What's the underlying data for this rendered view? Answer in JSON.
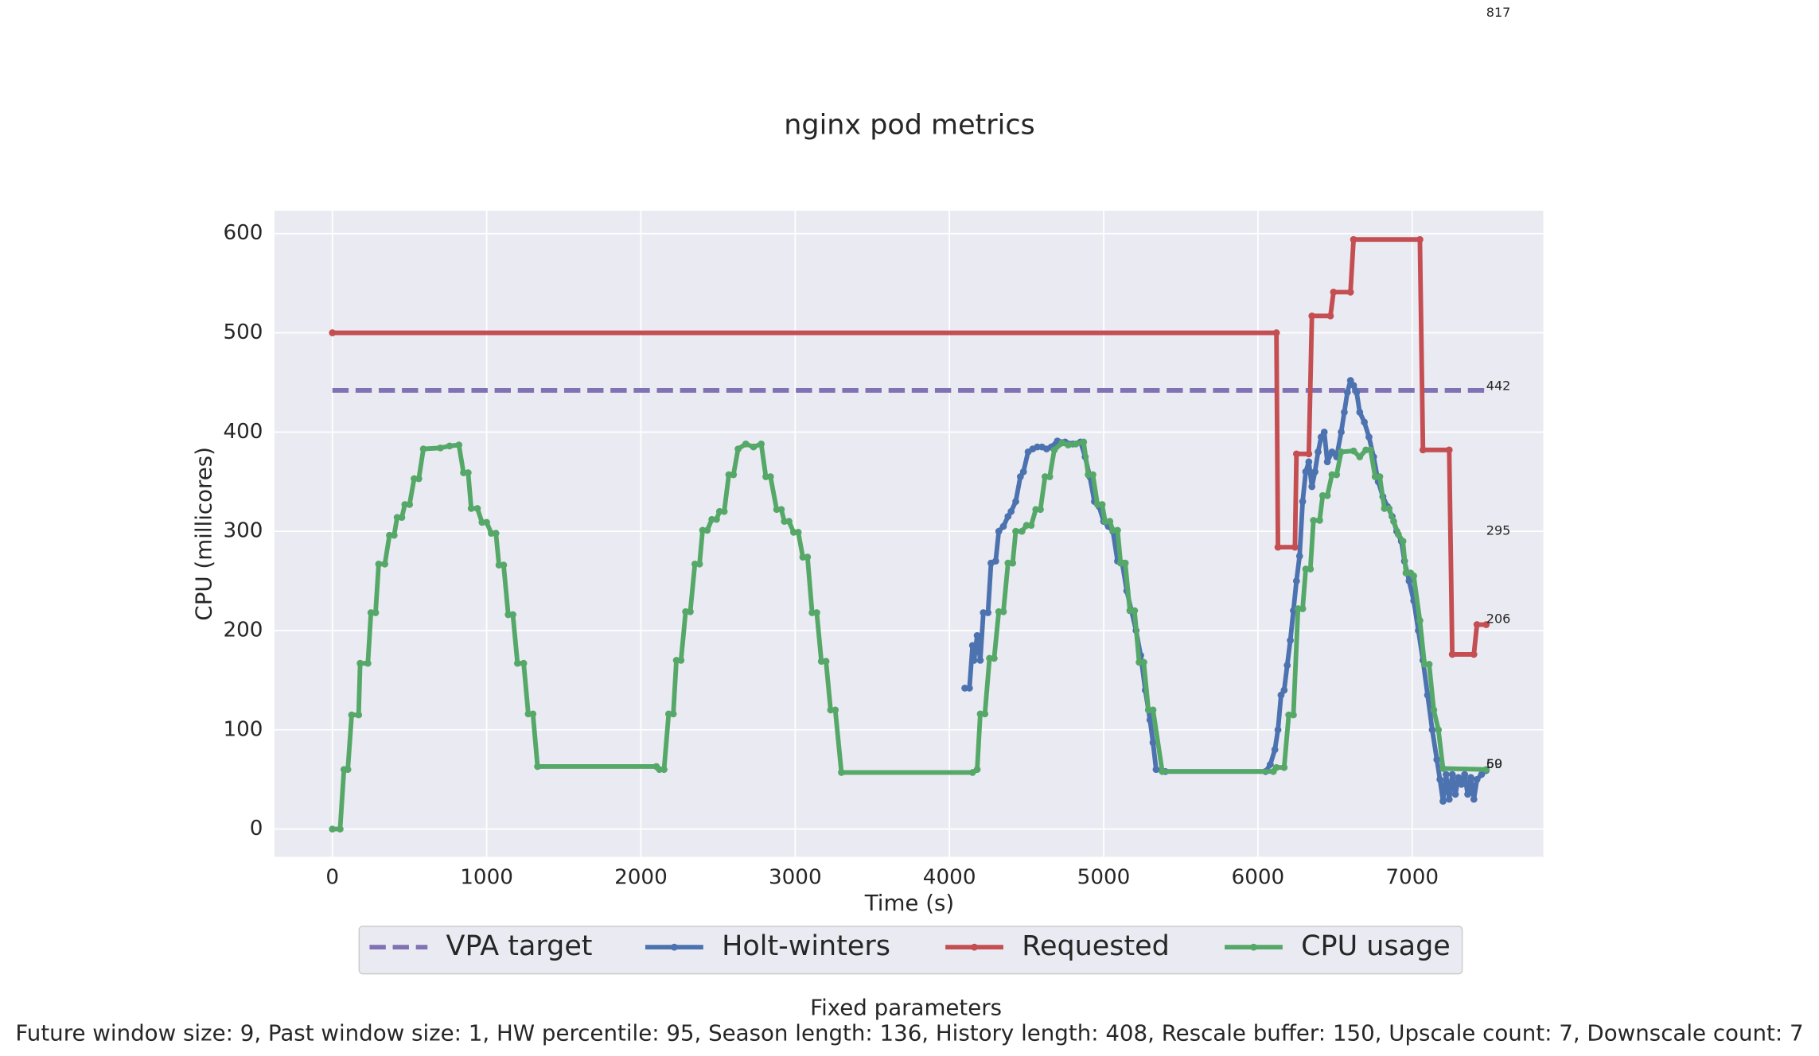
{
  "chart_data": {
    "type": "line",
    "title": "nginx pod metrics",
    "xlabel": "Time (s)",
    "ylabel": "CPU (millicores)",
    "xlim": [
      -375,
      7850
    ],
    "ylim": [
      -28,
      623
    ],
    "xticks": [
      0,
      1000,
      2000,
      3000,
      4000,
      5000,
      6000,
      7000
    ],
    "yticks": [
      0,
      100,
      200,
      300,
      400,
      500,
      600
    ],
    "grid": true,
    "legend": "lower center",
    "series": [
      {
        "name": "VPA target",
        "color": "#8172b3",
        "linestyle": "dashed",
        "markers": false,
        "x": [
          0,
          7480
        ],
        "values": [
          442,
          442
        ]
      },
      {
        "name": "Holt-winters",
        "color": "#4c72b0",
        "linestyle": "solid",
        "markers": true,
        "x": [
          4100,
          4130,
          4150,
          4160,
          4180,
          4200,
          4220,
          4250,
          4270,
          4300,
          4320,
          4350,
          4380,
          4400,
          4430,
          4460,
          4480,
          4510,
          4540,
          4570,
          4600,
          4630,
          4660,
          4700,
          4750,
          4800,
          4850,
          4880,
          4910,
          4940,
          4970,
          5000,
          5030,
          5060,
          5090,
          5120,
          5150,
          5180,
          5210,
          5240,
          5270,
          5300,
          5320,
          5340,
          5400,
          6050,
          6080,
          6110,
          6130,
          6150,
          6170,
          6190,
          6210,
          6230,
          6250,
          6270,
          6290,
          6310,
          6330,
          6350,
          6370,
          6390,
          6410,
          6430,
          6450,
          6480,
          6510,
          6540,
          6560,
          6580,
          6600,
          6620,
          6640,
          6660,
          6690,
          6720,
          6750,
          6780,
          6810,
          6840,
          6870,
          6900,
          6930,
          6950,
          6980,
          7010,
          7040,
          7070,
          7100,
          7130,
          7160,
          7180,
          7200,
          7220,
          7240,
          7260,
          7280,
          7300,
          7320,
          7340,
          7360,
          7380,
          7400,
          7420,
          7450,
          7480
        ],
        "values": [
          142,
          142,
          185,
          170,
          195,
          170,
          218,
          218,
          268,
          270,
          300,
          305,
          315,
          320,
          330,
          355,
          360,
          380,
          383,
          385,
          385,
          383,
          385,
          391,
          390,
          388,
          390,
          375,
          355,
          330,
          325,
          310,
          305,
          300,
          270,
          268,
          240,
          220,
          200,
          175,
          140,
          110,
          87,
          60,
          58,
          58,
          65,
          80,
          100,
          135,
          140,
          165,
          190,
          220,
          250,
          275,
          330,
          360,
          370,
          345,
          360,
          380,
          395,
          400,
          370,
          380,
          375,
          400,
          420,
          440,
          452,
          447,
          440,
          420,
          410,
          395,
          375,
          350,
          335,
          325,
          315,
          300,
          290,
          270,
          250,
          230,
          200,
          170,
          135,
          100,
          70,
          50,
          28,
          55,
          30,
          55,
          35,
          52,
          45,
          55,
          35,
          52,
          30,
          50,
          55,
          59
        ]
      },
      {
        "name": "Requested",
        "color": "#c44e52",
        "linestyle": "solid",
        "markers": true,
        "x": [
          0,
          6120,
          6130,
          6240,
          6250,
          6330,
          6350,
          6470,
          6490,
          6600,
          6620,
          7050,
          7070,
          7240,
          7260,
          7400,
          7420,
          7480
        ],
        "values": [
          500,
          500,
          284,
          284,
          378,
          378,
          517,
          517,
          541,
          541,
          594,
          594,
          382,
          382,
          176,
          176,
          206,
          206
        ]
      },
      {
        "name": "CPU usage",
        "color": "#55a868",
        "linestyle": "solid",
        "markers": true,
        "x": [
          0,
          50,
          75,
          100,
          125,
          170,
          180,
          230,
          250,
          280,
          300,
          340,
          370,
          400,
          420,
          450,
          470,
          500,
          530,
          560,
          590,
          700,
          760,
          820,
          850,
          880,
          900,
          940,
          970,
          1000,
          1030,
          1060,
          1080,
          1110,
          1140,
          1170,
          1200,
          1240,
          1270,
          1300,
          1330,
          2100,
          2120,
          2150,
          2180,
          2210,
          2230,
          2260,
          2290,
          2320,
          2350,
          2380,
          2400,
          2430,
          2460,
          2490,
          2510,
          2540,
          2570,
          2600,
          2630,
          2680,
          2730,
          2780,
          2810,
          2840,
          2880,
          2910,
          2930,
          2960,
          2990,
          3020,
          3050,
          3080,
          3110,
          3140,
          3170,
          3200,
          3230,
          3260,
          3300,
          4150,
          4180,
          4200,
          4230,
          4260,
          4290,
          4320,
          4350,
          4380,
          4410,
          4430,
          4470,
          4500,
          4530,
          4560,
          4590,
          4620,
          4650,
          4680,
          4730,
          4770,
          4820,
          4870,
          4900,
          4930,
          4960,
          4990,
          5010,
          5040,
          5060,
          5090,
          5110,
          5140,
          5170,
          5200,
          5230,
          5260,
          5290,
          5320,
          5380,
          6100,
          6120,
          6170,
          6200,
          6230,
          6260,
          6290,
          6310,
          6340,
          6360,
          6400,
          6420,
          6450,
          6480,
          6510,
          6540,
          6620,
          6660,
          6700,
          6730,
          6760,
          6790,
          6820,
          6850,
          6880,
          6910,
          6940,
          6960,
          6990,
          7010,
          7050,
          7080,
          7110,
          7140,
          7170,
          7200,
          7480
        ],
        "values": [
          0,
          0,
          60,
          60,
          115,
          115,
          167,
          167,
          218,
          218,
          267,
          267,
          296,
          296,
          314,
          314,
          327,
          327,
          353,
          353,
          383,
          384,
          386,
          387,
          359,
          359,
          323,
          323,
          309,
          309,
          298,
          298,
          266,
          266,
          216,
          216,
          167,
          167,
          116,
          116,
          63,
          63,
          60,
          60,
          116,
          116,
          170,
          170,
          219,
          219,
          267,
          267,
          301,
          301,
          312,
          312,
          320,
          320,
          357,
          357,
          383,
          388,
          385,
          388,
          355,
          355,
          322,
          322,
          310,
          310,
          299,
          299,
          274,
          274,
          218,
          218,
          169,
          169,
          120,
          120,
          57,
          57,
          60,
          116,
          116,
          172,
          172,
          219,
          219,
          268,
          268,
          300,
          300,
          306,
          306,
          322,
          322,
          355,
          355,
          382,
          389,
          387,
          388,
          390,
          357,
          357,
          327,
          327,
          310,
          310,
          301,
          301,
          268,
          268,
          220,
          220,
          168,
          168,
          120,
          120,
          58,
          58,
          62,
          62,
          115,
          115,
          222,
          222,
          262,
          262,
          311,
          311,
          336,
          336,
          357,
          357,
          380,
          381,
          375,
          382,
          382,
          355,
          355,
          323,
          323,
          310,
          297,
          290,
          258,
          258,
          255,
          210,
          166,
          166,
          120,
          100,
          61,
          60
        ]
      }
    ],
    "annotations": [
      {
        "text": "817",
        "x": 7480,
        "y": 822
      },
      {
        "text": "442",
        "x": 7480,
        "y": 446
      },
      {
        "text": "295",
        "x": 7480,
        "y": 300
      },
      {
        "text": "206",
        "x": 7480,
        "y": 211
      },
      {
        "text": "59",
        "x": 7480,
        "y": 65
      },
      {
        "text": "60",
        "x": 7480,
        "y": 65
      }
    ],
    "footer_title": "Fixed parameters",
    "footer_text": "Future window size: 9, Past window size: 1, HW percentile: 95, Season length: 136, History length: 408, Rescale buffer: 150, Upscale count: 7, Downscale count: 7"
  }
}
